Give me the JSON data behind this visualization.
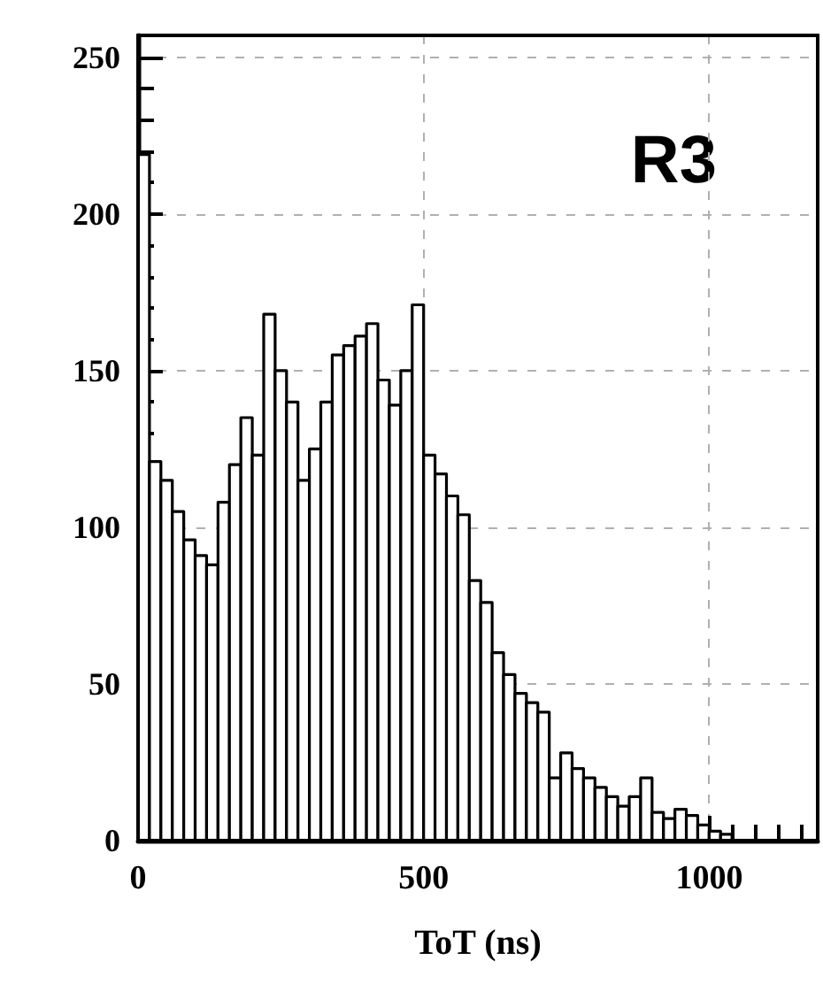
{
  "chart_data": {
    "type": "histogram",
    "xlabel": "ToT (ns)",
    "annotations": [
      "R3"
    ],
    "color": "#000000",
    "bins": [
      0,
      20,
      40,
      60,
      80,
      100,
      120,
      140,
      160,
      180,
      200,
      220,
      240,
      260,
      280,
      300,
      320,
      340,
      360,
      380,
      400,
      420,
      440,
      460,
      480,
      500,
      520,
      540,
      560,
      580,
      600,
      620,
      640,
      660,
      680,
      700,
      720,
      740,
      760,
      780,
      800,
      820,
      840,
      860,
      880,
      900,
      920,
      940,
      960,
      980,
      1000,
      1020,
      1040
    ],
    "values": [
      219,
      121,
      115,
      105,
      96,
      91,
      88,
      108,
      120,
      135,
      123,
      168,
      150,
      140,
      115,
      125,
      140,
      155,
      158,
      161,
      165,
      147,
      139,
      150,
      171,
      123,
      117,
      110,
      104,
      83,
      76,
      60,
      53,
      47,
      44,
      41,
      20,
      28,
      23,
      20,
      17,
      14,
      11,
      14,
      20,
      9,
      7,
      10,
      8,
      5,
      3,
      2
    ],
    "xlim": [
      0,
      1190
    ],
    "ylim": [
      0,
      257
    ],
    "xticks": [
      0,
      500,
      1000
    ],
    "yticks": [
      0,
      50,
      100,
      150,
      200,
      250
    ],
    "grid": true
  }
}
